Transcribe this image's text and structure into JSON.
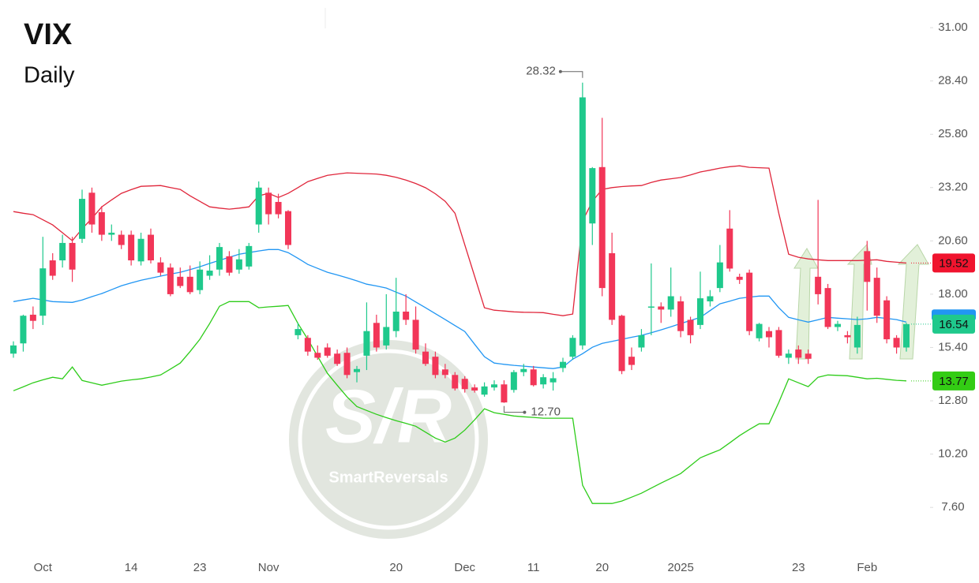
{
  "chart_data": {
    "type": "candlestick",
    "title": "VIX",
    "subtitle": "Daily",
    "watermark": {
      "logo": "S/R",
      "text": "SmartReversals"
    },
    "categories": [
      null,
      null,
      null,
      "Oct",
      null,
      null,
      null,
      null,
      null,
      null,
      null,
      null,
      "14",
      null,
      null,
      null,
      null,
      null,
      null,
      "23",
      null,
      null,
      null,
      null,
      null,
      null,
      "Nov",
      null,
      null,
      null,
      null,
      null,
      null,
      null,
      null,
      null,
      null,
      null,
      null,
      "20",
      null,
      null,
      null,
      null,
      null,
      null,
      "Dec",
      null,
      null,
      null,
      null,
      null,
      null,
      "11",
      null,
      null,
      null,
      null,
      null,
      null,
      "20",
      null,
      null,
      null,
      null,
      null,
      null,
      null,
      "2025",
      null,
      null,
      null,
      null,
      null,
      null,
      null,
      null,
      null,
      null,
      null,
      "23",
      null,
      null,
      null,
      null,
      null,
      null,
      "Feb",
      null,
      null,
      null,
      null
    ],
    "open": [
      15.1,
      15.6,
      17.0,
      16.95,
      19.65,
      19.65,
      20.5,
      20.7,
      22.95,
      22.0,
      20.9,
      20.9,
      20.9,
      19.6,
      20.9,
      19.55,
      19.3,
      18.85,
      18.85,
      18.2,
      18.9,
      19.2,
      19.85,
      19.2,
      19.35,
      21.4,
      22.95,
      22.5,
      22.05,
      16.0,
      15.87,
      15.14,
      15.4,
      15.1,
      15.14,
      14.2,
      15.0,
      16.6,
      15.5,
      16.2,
      17.15,
      16.75,
      15.2,
      14.95,
      14.33,
      14.06,
      13.87,
      13.45,
      13.1,
      13.45,
      13.6,
      13.33,
      14.2,
      14.33,
      13.6,
      13.7,
      14.4,
      14.95,
      15.5,
      21.45,
      24.2,
      20.0,
      16.95,
      14.95,
      15.4,
      17.35,
      17.4,
      17.25,
      17.65,
      16.75,
      16.5,
      17.65,
      18.3,
      21.2,
      18.85,
      19.05,
      15.85,
      16.2,
      16.25,
      14.9,
      15.3,
      15.1,
      18.85,
      18.3,
      16.4,
      16.0,
      15.4,
      20.1,
      18.8,
      17.7,
      15.87,
      15.4
    ],
    "high": [
      15.7,
      17.0,
      17.4,
      20.8,
      20.0,
      20.9,
      20.8,
      23.1,
      23.2,
      22.3,
      21.4,
      21.1,
      21.1,
      21.0,
      21.2,
      19.8,
      19.5,
      19.3,
      19.4,
      19.6,
      19.9,
      20.5,
      20.1,
      20.2,
      20.5,
      23.5,
      23.2,
      22.9,
      22.1,
      16.6,
      16.0,
      15.5,
      15.6,
      15.3,
      15.4,
      14.5,
      17.6,
      17.0,
      18.0,
      18.8,
      18.0,
      17.4,
      15.6,
      15.2,
      14.6,
      14.2,
      14.0,
      13.6,
      13.7,
      13.8,
      13.8,
      14.3,
      14.6,
      14.5,
      14.1,
      14.2,
      14.9,
      16.0,
      28.32,
      24.2,
      26.6,
      21.0,
      17.0,
      15.4,
      16.3,
      19.5,
      17.6,
      19.3,
      17.9,
      16.9,
      19.1,
      18.2,
      20.4,
      22.1,
      19.0,
      19.2,
      16.6,
      16.4,
      16.4,
      15.3,
      15.5,
      15.3,
      22.6,
      18.5,
      16.7,
      16.2,
      16.9,
      20.6,
      19.3,
      17.9,
      16.0,
      16.6
    ],
    "low": [
      14.9,
      15.2,
      16.3,
      16.5,
      18.7,
      19.3,
      18.6,
      20.5,
      21.0,
      20.6,
      20.6,
      20.2,
      19.4,
      19.4,
      19.5,
      18.9,
      17.9,
      18.3,
      18.0,
      18.0,
      18.7,
      18.9,
      18.9,
      19.0,
      19.2,
      21.0,
      21.4,
      21.7,
      20.2,
      15.8,
      15.0,
      14.8,
      14.9,
      14.5,
      13.9,
      13.7,
      14.3,
      15.2,
      15.3,
      15.9,
      16.5,
      15.1,
      14.5,
      13.9,
      13.9,
      13.3,
      13.2,
      13.2,
      13.0,
      13.3,
      12.7,
      13.2,
      14.0,
      13.5,
      13.4,
      13.3,
      14.2,
      14.8,
      15.3,
      20.4,
      17.9,
      16.5,
      14.1,
      14.3,
      15.2,
      16.0,
      16.6,
      16.9,
      15.9,
      15.6,
      16.3,
      17.4,
      18.1,
      19.1,
      18.5,
      16.0,
      15.7,
      15.4,
      14.9,
      14.6,
      14.6,
      14.6,
      17.5,
      16.3,
      16.2,
      15.6,
      15.1,
      17.2,
      16.6,
      15.6,
      15.1,
      15.2
    ],
    "close": [
      15.5,
      16.95,
      16.7,
      19.26,
      18.9,
      20.5,
      19.2,
      22.65,
      21.4,
      20.9,
      21.0,
      20.4,
      19.65,
      20.7,
      19.65,
      19.05,
      18.0,
      18.4,
      18.1,
      19.2,
      19.15,
      20.3,
      19.05,
      19.7,
      20.35,
      23.2,
      21.9,
      21.9,
      20.4,
      16.3,
      15.2,
      14.9,
      15.0,
      14.6,
      14.06,
      14.35,
      16.2,
      15.4,
      16.4,
      17.15,
      16.75,
      15.3,
      14.6,
      14.06,
      14.06,
      13.4,
      13.37,
      13.3,
      13.5,
      13.6,
      12.72,
      14.2,
      14.35,
      13.56,
      13.95,
      13.9,
      14.7,
      15.87,
      27.6,
      24.15,
      18.3,
      16.75,
      14.25,
      14.55,
      16.0,
      17.4,
      17.25,
      17.9,
      16.2,
      16.0,
      17.8,
      17.9,
      19.55,
      19.25,
      18.7,
      16.2,
      16.55,
      15.9,
      15.0,
      15.1,
      14.9,
      14.85,
      18.0,
      16.4,
      16.55,
      15.9,
      16.5,
      18.6,
      16.95,
      15.8,
      15.4,
      16.54
    ],
    "up_color": "#1fc98c",
    "down_color": "#f23658",
    "series": [
      {
        "color": "#e0263b",
        "values": [
          22.03,
          21.95,
          21.88,
          21.63,
          21.38,
          21.0,
          20.61,
          21.19,
          21.7,
          22.26,
          22.6,
          22.92,
          23.1,
          23.26,
          23.28,
          23.3,
          23.2,
          23.11,
          22.8,
          22.53,
          22.26,
          22.2,
          22.15,
          22.2,
          22.26,
          22.8,
          22.92,
          22.72,
          22.92,
          23.2,
          23.49,
          23.65,
          23.8,
          23.86,
          23.92,
          23.9,
          23.88,
          23.86,
          23.8,
          23.7,
          23.57,
          23.4,
          23.19,
          22.9,
          22.53,
          21.95,
          20.41,
          18.88,
          17.34,
          17.22,
          17.18,
          17.14,
          17.12,
          17.11,
          17.1,
          17.02,
          16.95,
          17.03,
          21.57,
          22.53,
          23.11,
          23.2,
          23.25,
          23.28,
          23.3,
          23.45,
          23.57,
          23.63,
          23.69,
          23.82,
          23.96,
          24.05,
          24.15,
          24.22,
          24.26,
          24.19,
          24.17,
          24.15,
          21.95,
          19.95,
          19.8,
          19.72,
          19.68,
          19.64,
          19.64,
          19.64,
          19.64,
          19.66,
          19.68,
          19.6,
          19.56,
          19.52
        ]
      },
      {
        "color": "#2196f3",
        "values": [
          17.64,
          17.72,
          17.8,
          17.72,
          17.64,
          17.62,
          17.6,
          17.72,
          17.88,
          18.03,
          18.22,
          18.41,
          18.55,
          18.68,
          18.78,
          18.88,
          18.98,
          19.07,
          19.2,
          19.34,
          19.5,
          19.65,
          19.8,
          19.95,
          20.03,
          20.11,
          20.18,
          20.18,
          20.03,
          19.75,
          19.45,
          19.26,
          19.07,
          18.94,
          18.8,
          18.65,
          18.49,
          18.4,
          18.3,
          18.1,
          17.91,
          17.62,
          17.34,
          17.05,
          16.76,
          16.47,
          16.18,
          15.56,
          14.95,
          14.64,
          14.58,
          14.53,
          14.49,
          14.45,
          14.41,
          14.37,
          14.45,
          14.83,
          15.1,
          15.41,
          15.6,
          15.7,
          15.8,
          15.9,
          15.99,
          16.12,
          16.26,
          16.41,
          16.57,
          16.72,
          16.87,
          17.2,
          17.53,
          17.66,
          17.8,
          17.86,
          17.91,
          17.91,
          17.34,
          16.87,
          16.75,
          16.64,
          16.75,
          16.87,
          16.83,
          16.8,
          16.76,
          16.8,
          16.87,
          16.82,
          16.76,
          16.64
        ]
      },
      {
        "color": "#2ecc1a",
        "values": [
          13.29,
          13.48,
          13.68,
          13.82,
          13.95,
          13.87,
          14.45,
          13.79,
          13.68,
          13.56,
          13.66,
          13.76,
          13.82,
          13.87,
          13.96,
          14.06,
          14.35,
          14.64,
          15.2,
          15.8,
          16.57,
          17.41,
          17.64,
          17.64,
          17.64,
          17.34,
          17.38,
          17.41,
          17.45,
          16.57,
          15.8,
          14.97,
          14.14,
          13.56,
          12.99,
          12.52,
          12.33,
          12.14,
          11.98,
          11.83,
          11.7,
          11.56,
          11.27,
          10.98,
          10.79,
          10.98,
          11.37,
          11.87,
          12.41,
          12.22,
          12.14,
          12.06,
          12.02,
          11.99,
          11.95,
          11.95,
          11.95,
          11.95,
          8.68,
          7.79,
          7.79,
          7.79,
          7.91,
          8.1,
          8.29,
          8.54,
          8.79,
          9.02,
          9.25,
          9.64,
          10.02,
          10.22,
          10.41,
          10.75,
          11.1,
          11.4,
          11.68,
          11.68,
          12.72,
          13.87,
          13.68,
          13.49,
          13.95,
          14.06,
          14.04,
          14.02,
          13.95,
          13.87,
          13.9,
          13.85,
          13.8,
          13.77
        ]
      }
    ],
    "annotations": [
      {
        "value": 28.32,
        "label": "28.32"
      },
      {
        "value": 12.7,
        "label": "12.70"
      }
    ],
    "ylim": [
      6.26,
      32.35
    ],
    "yticks": [
      {
        "value": 31,
        "label": "31.00"
      },
      {
        "value": 28.4,
        "label": "28.40"
      },
      {
        "value": 25.8,
        "label": "25.80"
      },
      {
        "value": 23.2,
        "label": "23.20"
      },
      {
        "value": 20.6,
        "label": "20.60"
      },
      {
        "value": 18,
        "label": "18.00"
      },
      {
        "value": 15.4,
        "label": "15.40"
      },
      {
        "value": 12.8,
        "label": "12.80"
      },
      {
        "value": 10.2,
        "label": "10.20"
      },
      {
        "value": 7.6,
        "label": "7.60"
      }
    ]
  }
}
